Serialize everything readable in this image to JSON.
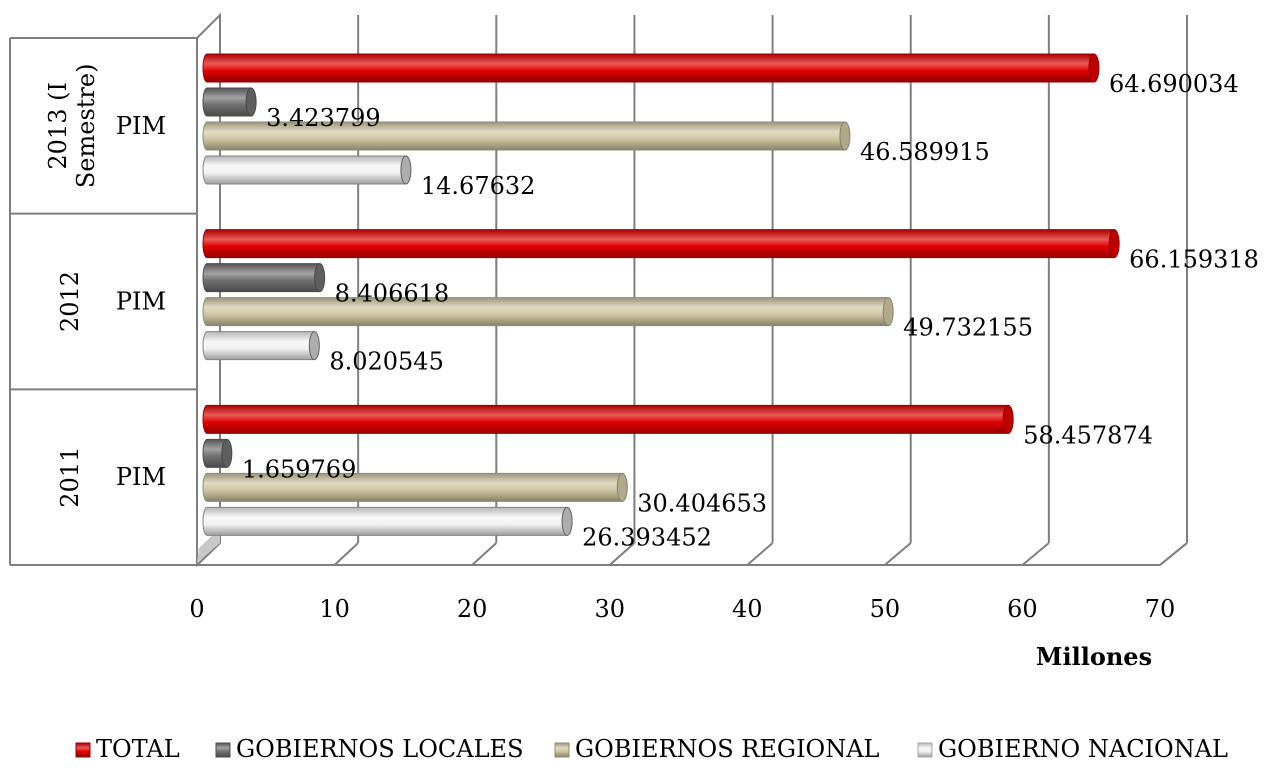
{
  "chart_data": {
    "type": "bar",
    "orientation": "horizontal",
    "style": "3d-cylinder",
    "groups": [
      {
        "year": "2011",
        "category": "PIM"
      },
      {
        "year": "2012",
        "category": "PIM"
      },
      {
        "year": "2013 (I Semestre)",
        "category": "PIM"
      }
    ],
    "series": [
      {
        "name": "TOTAL",
        "color": "#e00000",
        "values": [
          58.457874,
          66.159318,
          64.690034
        ]
      },
      {
        "name": "GOBIERNOS LOCALES",
        "color": "#707070",
        "values": [
          1.659769,
          8.406618,
          3.423799
        ]
      },
      {
        "name": "GOBIERNOS REGIONAL",
        "color": "#cfc7a3",
        "values": [
          30.404653,
          49.732155,
          46.589915
        ]
      },
      {
        "name": "GOBIERNO NACIONAL",
        "color": "#ffffff",
        "values": [
          26.393452,
          8.020545,
          14.67632
        ]
      }
    ],
    "data_labels": [
      [
        "58.457874",
        "66.159318",
        "64.690034"
      ],
      [
        "1.659769",
        "8.406618",
        "3.423799"
      ],
      [
        "30.404653",
        "49.732155",
        "46.589915"
      ],
      [
        "26.393452",
        "8.020545",
        "14.67632"
      ]
    ],
    "x_ticks": [
      "0",
      "10",
      "20",
      "30",
      "40",
      "50",
      "60",
      "70"
    ],
    "xlim": [
      0,
      70
    ],
    "xlabel": "Millones",
    "grid": true,
    "legend_position": "bottom"
  }
}
